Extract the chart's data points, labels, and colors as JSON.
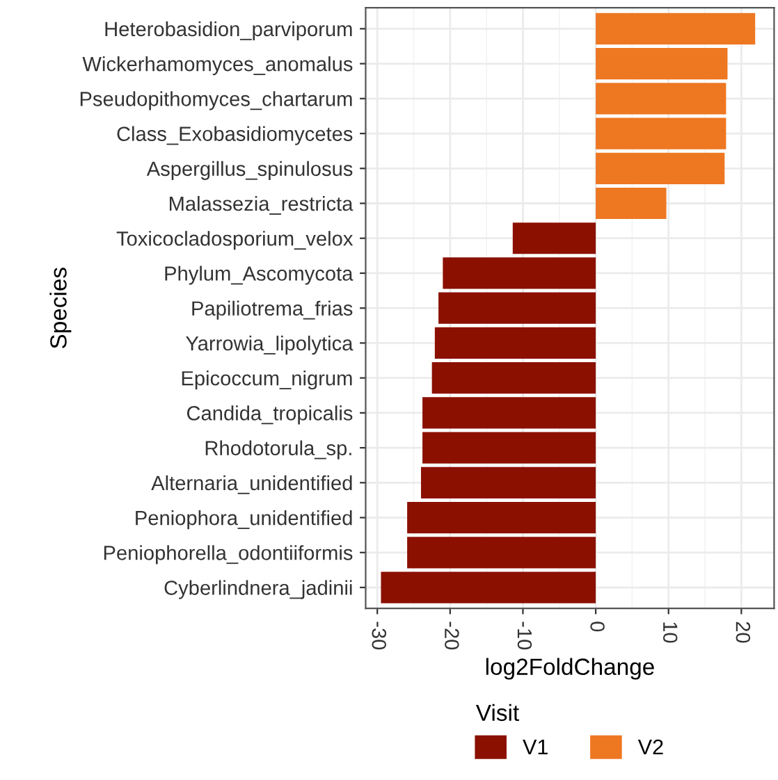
{
  "chart_data": {
    "type": "bar",
    "orientation": "horizontal",
    "xlabel": "log2FoldChange",
    "ylabel": "Species",
    "legend_title": "Visit",
    "legend": "bottom",
    "grid": true,
    "categories": [
      "Heterobasidion_parviporum",
      "Wickerhamomyces_anomalus",
      "Pseudopithomyces_chartarum",
      "Class_Exobasidiomycetes",
      "Aspergillus_spinulosus",
      "Malassezia_restricta",
      "Toxicocladosporium_velox",
      "Phylum_Ascomycota",
      "Papiliotrema_frias",
      "Yarrowia_lipolytica",
      "Epicoccum_nigrum",
      "Candida_tropicalis",
      "Rhodotorula_sp.",
      "Alternaria_unidentified",
      "Peniophora_unidentified",
      "Peniophorella_odontiiformis",
      "Cyberlindnera_jadinii"
    ],
    "series": [
      {
        "name": "V1",
        "color": "#8b1000",
        "values": [
          null,
          null,
          null,
          null,
          null,
          null,
          -11.4,
          -21.0,
          -21.6,
          -22.1,
          -22.5,
          -23.8,
          -23.8,
          -24.0,
          -25.9,
          -25.9,
          -29.5
        ]
      },
      {
        "name": "V2",
        "color": "#ee7722",
        "values": [
          21.9,
          18.1,
          17.9,
          17.9,
          17.7,
          9.7,
          null,
          null,
          null,
          null,
          null,
          null,
          null,
          null,
          null,
          null,
          null
        ]
      }
    ],
    "xlim": [
      -31.6,
      24.5
    ],
    "xticks": [
      -30,
      -20,
      -10,
      0,
      10,
      20
    ]
  }
}
